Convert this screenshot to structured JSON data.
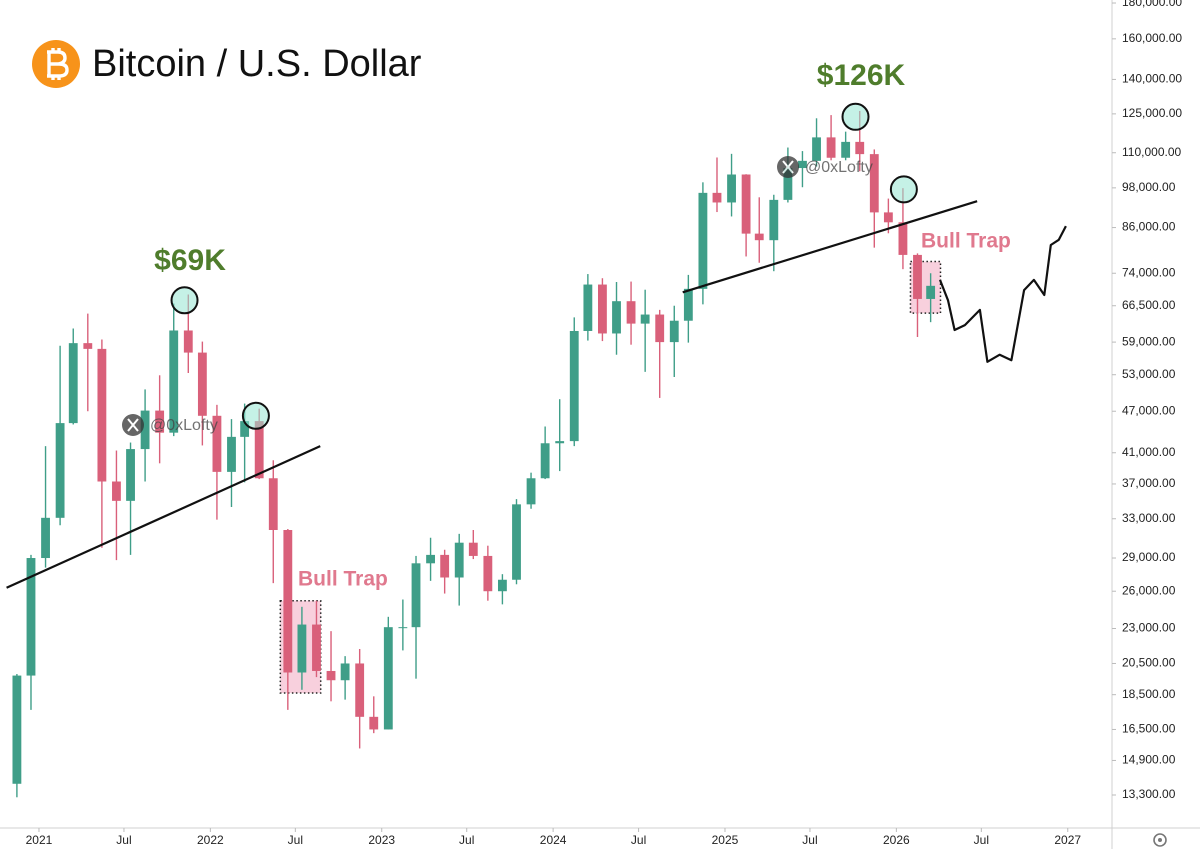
{
  "chart_data": {
    "type": "candlestick",
    "title": "Bitcoin / U.S. Dollar",
    "log_scale": true,
    "grid": false,
    "up_color": "#3f9e88",
    "down_color": "#d9607a",
    "x": [
      "2020-11",
      "2020-12",
      "2021-01",
      "2021-02",
      "2021-03",
      "2021-04",
      "2021-05",
      "2021-06",
      "2021-07",
      "2021-08",
      "2021-09",
      "2021-10",
      "2021-11",
      "2021-12",
      "2022-01",
      "2022-02",
      "2022-03",
      "2022-04",
      "2022-05",
      "2022-06",
      "2022-07",
      "2022-08",
      "2022-09",
      "2022-10",
      "2022-11",
      "2022-12",
      "2023-01",
      "2023-02",
      "2023-03",
      "2023-04",
      "2023-05",
      "2023-06",
      "2023-07",
      "2023-08",
      "2023-09",
      "2023-10",
      "2023-11",
      "2023-12",
      "2024-01",
      "2024-02",
      "2024-03",
      "2024-04",
      "2024-05",
      "2024-06",
      "2024-07",
      "2024-08",
      "2024-09",
      "2024-10",
      "2024-11",
      "2024-12",
      "2025-01",
      "2025-02",
      "2025-03",
      "2025-04",
      "2025-05",
      "2025-06",
      "2025-07",
      "2025-08",
      "2025-09",
      "2025-10",
      "2025-11",
      "2025-12",
      "2026-01",
      "2026-02",
      "2026-03"
    ],
    "open": [
      13800,
      19700,
      29000,
      33100,
      45200,
      58800,
      57700,
      37300,
      35000,
      41500,
      47100,
      43800,
      61300,
      57000,
      46300,
      38500,
      43200,
      45500,
      37700,
      31800,
      19900,
      23300,
      20000,
      19400,
      20500,
      17200,
      16500,
      23100,
      23100,
      28500,
      29300,
      27200,
      30500,
      29200,
      26000,
      27000,
      34600,
      37700,
      42300,
      42600,
      61200,
      71300,
      60700,
      67500,
      62700,
      64600,
      59000,
      63300,
      70300,
      96400,
      93400,
      102400,
      84300,
      82500,
      94200,
      104600,
      107100,
      115700,
      108200,
      114000,
      109500,
      90400,
      87500,
      78600,
      68000
    ],
    "high": [
      19800,
      29300,
      41900,
      58300,
      61700,
      64800,
      59500,
      41300,
      42400,
      50500,
      52900,
      67000,
      69000,
      59100,
      48000,
      45800,
      48200,
      47400,
      40000,
      31900,
      24700,
      25200,
      22800,
      21000,
      21500,
      18400,
      23900,
      25300,
      29200,
      31000,
      29800,
      31400,
      31800,
      30200,
      27500,
      35200,
      38400,
      44700,
      48900,
      64000,
      73800,
      72800,
      71900,
      72000,
      70100,
      65600,
      66500,
      73600,
      99800,
      108300,
      109600,
      102500,
      95000,
      95800,
      111900,
      110600,
      123200,
      124500,
      117900,
      126200,
      111200,
      94600,
      97900,
      79000,
      74000
    ],
    "low": [
      13200,
      17600,
      28100,
      32300,
      45000,
      47000,
      30000,
      28800,
      29300,
      37300,
      39600,
      43300,
      53300,
      42000,
      32900,
      34300,
      37200,
      37600,
      26700,
      17600,
      18800,
      19600,
      18100,
      18200,
      15500,
      16300,
      16500,
      21400,
      19500,
      26900,
      25800,
      24800,
      28900,
      25200,
      24900,
      26600,
      34100,
      37600,
      38600,
      41900,
      59300,
      59200,
      56600,
      58500,
      53500,
      49100,
      52600,
      58900,
      66800,
      90500,
      89200,
      78200,
      76600,
      74500,
      93400,
      98200,
      105100,
      107300,
      107300,
      103500,
      80500,
      84400,
      75000,
      60000,
      63000
    ],
    "close": [
      19700,
      29000,
      33100,
      45200,
      58800,
      57700,
      37300,
      35000,
      41500,
      47100,
      43800,
      61300,
      57000,
      46300,
      38500,
      43200,
      45500,
      37700,
      31800,
      19900,
      23300,
      20000,
      19400,
      20500,
      17200,
      16500,
      23100,
      23100,
      28500,
      29300,
      27200,
      30500,
      29200,
      26000,
      27000,
      34600,
      37700,
      42300,
      42600,
      61200,
      71300,
      60700,
      67500,
      62700,
      64600,
      59000,
      63300,
      70300,
      96400,
      93400,
      102400,
      84300,
      82500,
      94200,
      104600,
      107100,
      115700,
      108200,
      114000,
      109500,
      90400,
      87500,
      78600,
      68000,
      71000
    ],
    "xlim": [
      "2020-10-10",
      "2027-04-01"
    ],
    "ylim": [
      12050,
      181800
    ],
    "xticks": [
      {
        "value": "2021-01-01",
        "label": "2021"
      },
      {
        "value": "2021-07-01",
        "label": "Jul"
      },
      {
        "value": "2022-01-01",
        "label": "2022"
      },
      {
        "value": "2022-07-01",
        "label": "Jul"
      },
      {
        "value": "2023-01-01",
        "label": "2023"
      },
      {
        "value": "2023-07-01",
        "label": "Jul"
      },
      {
        "value": "2024-01-01",
        "label": "2024"
      },
      {
        "value": "2024-07-01",
        "label": "Jul"
      },
      {
        "value": "2025-01-01",
        "label": "2025"
      },
      {
        "value": "2025-07-01",
        "label": "Jul"
      },
      {
        "value": "2026-01-01",
        "label": "2026"
      },
      {
        "value": "2026-07-01",
        "label": "Jul"
      },
      {
        "value": "2027-01-01",
        "label": "2027"
      }
    ],
    "yticks": [
      {
        "value": 180000,
        "label": "180,000.00"
      },
      {
        "value": 160000,
        "label": "160,000.00"
      },
      {
        "value": 140000,
        "label": "140,000.00"
      },
      {
        "value": 125000,
        "label": "125,000.00"
      },
      {
        "value": 110000,
        "label": "110,000.00"
      },
      {
        "value": 98000,
        "label": "98,000.00"
      },
      {
        "value": 86000,
        "label": "86,000.00"
      },
      {
        "value": 74000,
        "label": "74,000.00"
      },
      {
        "value": 66500,
        "label": "66,500.00"
      },
      {
        "value": 59000,
        "label": "59,000.00"
      },
      {
        "value": 53000,
        "label": "53,000.00"
      },
      {
        "value": 47000,
        "label": "47,000.00"
      },
      {
        "value": 41000,
        "label": "41,000.00"
      },
      {
        "value": 37000,
        "label": "37,000.00"
      },
      {
        "value": 33000,
        "label": "33,000.00"
      },
      {
        "value": 29000,
        "label": "29,000.00"
      },
      {
        "value": 26000,
        "label": "26,000.00"
      },
      {
        "value": 23000,
        "label": "23,000.00"
      },
      {
        "value": 20500,
        "label": "20,500.00"
      },
      {
        "value": 18500,
        "label": "18,500.00"
      },
      {
        "value": 16500,
        "label": "16,500.00"
      },
      {
        "value": 14900,
        "label": "14,900.00"
      },
      {
        "value": 13300,
        "label": "13,300.00"
      }
    ],
    "trendlines": [
      {
        "x": [
          "2020-10-24",
          "2022-08-23"
        ],
        "y": [
          26300,
          41900
        ]
      },
      {
        "x": [
          "2024-10-03",
          "2026-06-22"
        ],
        "y": [
          69500,
          93800
        ]
      }
    ],
    "projection": {
      "x": [
        "2026-04-04",
        "2026-04-21",
        "2026-05-05",
        "2026-05-27",
        "2026-06-28",
        "2026-07-14",
        "2026-08-09",
        "2026-09-03",
        "2026-09-30",
        "2026-10-21",
        "2026-11-12",
        "2026-11-26",
        "2026-12-13",
        "2026-12-28"
      ],
      "y": [
        72400,
        67700,
        61400,
        62400,
        65600,
        55300,
        56600,
        55600,
        70000,
        72400,
        68900,
        81200,
        82600,
        86400
      ]
    },
    "highlights": {
      "x": [
        "2021-11-07",
        "2022-04-08",
        "2025-10-06",
        "2026-01-17"
      ],
      "y": [
        67700,
        46300,
        123800,
        97500
      ]
    },
    "bull_trap_zones": [
      {
        "x": [
          "2022-05-30",
          "2022-08-24"
        ],
        "y": [
          18600,
          25200
        ]
      },
      {
        "x": [
          "2026-01-31",
          "2026-04-05"
        ],
        "y": [
          64900,
          76900
        ]
      }
    ],
    "peak_labels": [
      "$69K",
      "$126K"
    ],
    "bull_trap_labels": [
      "Bull Trap",
      "Bull Trap"
    ],
    "watermarks": [
      "@0xLofty",
      "@0xLofty"
    ]
  }
}
